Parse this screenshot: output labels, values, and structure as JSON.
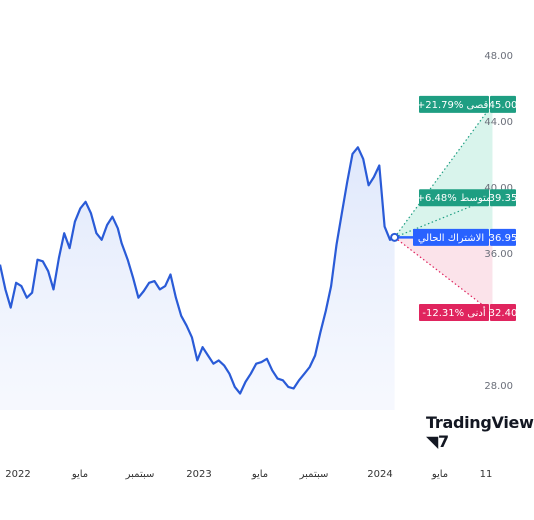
{
  "chart_data": {
    "type": "line",
    "yaxis": {
      "ticks": [
        48,
        44,
        40,
        36,
        28
      ],
      "range": [
        26.5,
        49.5
      ]
    },
    "xaxis": {
      "labels": [
        "2022",
        "مايو",
        "سبتمبر",
        "2023",
        "مايو",
        "سبتمبر",
        "2024",
        "مايو",
        "11"
      ],
      "range": [
        0,
        34
      ]
    },
    "series": [
      {
        "color": "#2a5bd7",
        "points": [
          [
            0,
            35.3
          ],
          [
            0.35,
            33.8
          ],
          [
            0.7,
            32.7
          ],
          [
            1.05,
            34.2
          ],
          [
            1.4,
            34.0
          ],
          [
            1.75,
            33.3
          ],
          [
            2.1,
            33.6
          ],
          [
            2.45,
            35.6
          ],
          [
            2.8,
            35.5
          ],
          [
            3.15,
            34.9
          ],
          [
            3.5,
            33.8
          ],
          [
            3.85,
            35.7
          ],
          [
            4.2,
            37.2
          ],
          [
            4.55,
            36.3
          ],
          [
            4.9,
            37.9
          ],
          [
            5.25,
            38.7
          ],
          [
            5.6,
            39.1
          ],
          [
            5.95,
            38.4
          ],
          [
            6.3,
            37.2
          ],
          [
            6.65,
            36.8
          ],
          [
            7.0,
            37.7
          ],
          [
            7.35,
            38.2
          ],
          [
            7.7,
            37.5
          ],
          [
            7.95,
            36.6
          ],
          [
            8.35,
            35.6
          ],
          [
            8.7,
            34.5
          ],
          [
            9.05,
            33.3
          ],
          [
            9.4,
            33.7
          ],
          [
            9.75,
            34.2
          ],
          [
            10.1,
            34.3
          ],
          [
            10.45,
            33.8
          ],
          [
            10.8,
            34.0
          ],
          [
            11.15,
            34.7
          ],
          [
            11.5,
            33.3
          ],
          [
            11.85,
            32.2
          ],
          [
            12.2,
            31.6
          ],
          [
            12.55,
            30.9
          ],
          [
            12.9,
            29.5
          ],
          [
            13.25,
            30.3
          ],
          [
            13.6,
            29.8
          ],
          [
            13.95,
            29.3
          ],
          [
            14.3,
            29.5
          ],
          [
            14.65,
            29.2
          ],
          [
            15.0,
            28.7
          ],
          [
            15.35,
            27.9
          ],
          [
            15.7,
            27.5
          ],
          [
            16.05,
            28.2
          ],
          [
            16.4,
            28.7
          ],
          [
            16.75,
            29.3
          ],
          [
            17.1,
            29.4
          ],
          [
            17.45,
            29.6
          ],
          [
            17.8,
            28.9
          ],
          [
            18.15,
            28.4
          ],
          [
            18.5,
            28.3
          ],
          [
            18.85,
            27.9
          ],
          [
            19.2,
            27.8
          ],
          [
            19.55,
            28.3
          ],
          [
            19.9,
            28.7
          ],
          [
            20.25,
            29.1
          ],
          [
            20.6,
            29.8
          ],
          [
            20.95,
            31.2
          ],
          [
            21.3,
            32.5
          ],
          [
            21.65,
            34.0
          ],
          [
            22.0,
            36.5
          ],
          [
            22.35,
            38.4
          ],
          [
            22.7,
            40.3
          ],
          [
            23.05,
            42.0
          ],
          [
            23.4,
            42.4
          ],
          [
            23.75,
            41.7
          ],
          [
            24.1,
            40.1
          ],
          [
            24.45,
            40.6
          ],
          [
            24.8,
            41.3
          ],
          [
            25.15,
            37.6
          ],
          [
            25.5,
            36.8
          ],
          [
            25.8,
            36.95
          ]
        ]
      }
    ],
    "forecast": {
      "start": [
        25.8,
        36.95
      ],
      "end_x": 32.2,
      "levels": [
        {
          "value": 45.0,
          "label": "45.00",
          "tag": "+21.79% أقصى",
          "color": "#1e9e82",
          "fill": "#d9f4ec"
        },
        {
          "value": 39.35,
          "label": "39.35",
          "tag": "+6.48% متوسط",
          "color": "#1e9e82"
        },
        {
          "value": 36.95,
          "label": "36.95",
          "tag": "الاشتراك الحالي",
          "color": "#2962ff"
        },
        {
          "value": 32.4,
          "label": "32.40",
          "tag": "-12.31% أدنى",
          "color": "#e0245e",
          "fill": "#fbe3ea"
        }
      ]
    }
  },
  "logo": {
    "text": "TradingView"
  }
}
